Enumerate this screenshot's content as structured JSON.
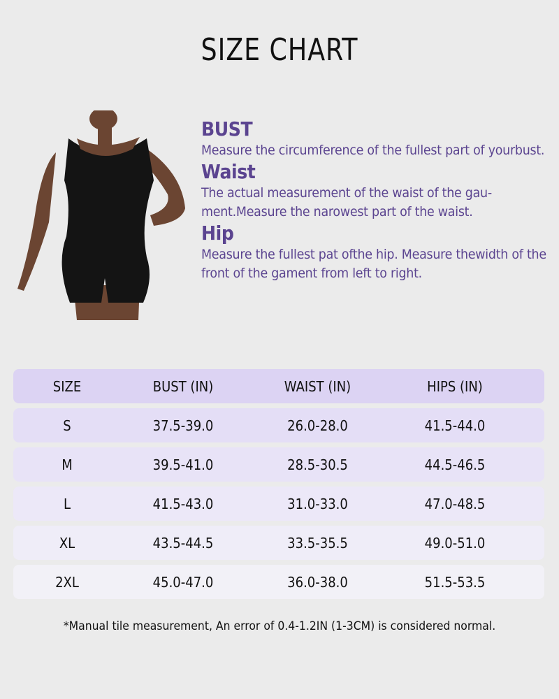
{
  "title": "SIZE CHART",
  "descriptions": [
    {
      "heading": "BUST",
      "text": "Measure the circumference of the fullest part of yourbust."
    },
    {
      "heading": "Waist",
      "text": "The actual measurement of the waist of the gau-ment.Measure the narowest part of the waist."
    },
    {
      "heading": "Hip",
      "text": "Measure the fullest pat ofthe hip. Measure thewidth of the front of the gament from left to right."
    }
  ],
  "table": {
    "headers": [
      "SIZE",
      "BUST (IN)",
      "WAIST (IN)",
      "HIPS (IN)"
    ],
    "rows": [
      [
        "S",
        "37.5-39.0",
        "26.0-28.0",
        "41.5-44.0"
      ],
      [
        "M",
        "39.5-41.0",
        "28.5-30.5",
        "44.5-46.5"
      ],
      [
        "L",
        "41.5-43.0",
        "31.0-33.0",
        "47.0-48.5"
      ],
      [
        "XL",
        "43.5-44.5",
        "33.5-35.5",
        "49.0-51.0"
      ],
      [
        "2XL",
        "45.0-47.0",
        "36.0-38.0",
        "51.5-53.5"
      ]
    ]
  },
  "note": "*Manual tile measurement, An error of 0.4-1.2IN (1-3CM) is considered normal.",
  "colors": {
    "accent": "#5b4490",
    "header_row": "#dcd3f3",
    "background": "#ebebeb"
  }
}
